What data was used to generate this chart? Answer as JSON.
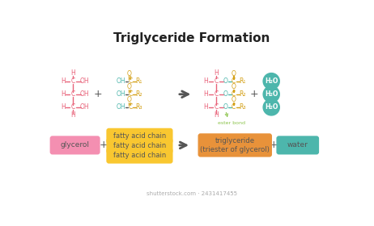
{
  "title": "Triglyceride Formation",
  "title_fontsize": 11,
  "bg_color": "#ffffff",
  "glycerol_color": "#F48FB1",
  "fatty_acid_color": "#F9C730",
  "triglyceride_color": "#E8923A",
  "water_circle_color": "#4DB6AC",
  "water_box_color": "#4DB6AC",
  "label_glycerol": "glycerol",
  "label_fatty": "fatty acid chain",
  "label_triglyceride": "triglyceride\n(triester of glycerol)",
  "label_water": "water",
  "label_ester": "ester bond",
  "col_pink": "#E8637A",
  "col_teal": "#4DB6AC",
  "col_yellow": "#D4A017",
  "col_text": "#555555",
  "ester_color": "#8BC34A",
  "shutterstock_text": "shutterstock.com · 2431417455"
}
